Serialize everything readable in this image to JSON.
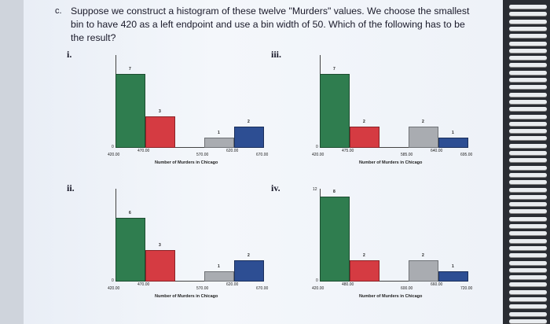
{
  "question": {
    "letter": "c.",
    "text": "Suppose we construct a histogram of these twelve \"Murders\" values. We choose the smallest bin to have 420 as a left endpoint and use a bin width of 50. Which of the following has to be the result?"
  },
  "colors": {
    "green": "#2f7d4f",
    "red": "#d53b42",
    "grey": "#a9acb1",
    "blue": "#2d4e93"
  },
  "panels": [
    {
      "label": "i.",
      "xtitle": "Number of Murders in Chicago",
      "counts": [
        7,
        3,
        1,
        2
      ],
      "ticks": [
        "420.00",
        "470.00",
        "570.00",
        "620.00",
        "670.00"
      ],
      "ymax_label": ""
    },
    {
      "label": "ii.",
      "xtitle": "Number of Murders in Chicago",
      "counts": [
        6,
        3,
        1,
        2
      ],
      "ticks": [
        "420.00",
        "470.00",
        "570.00",
        "620.00",
        "670.00"
      ],
      "ymax_label": ""
    },
    {
      "label": "iii.",
      "xtitle": "Number of Murders in Chicago",
      "counts": [
        7,
        2,
        2,
        1
      ],
      "ticks": [
        "420.00",
        "475.00",
        "585.00",
        "640.00",
        "695.00"
      ],
      "ymax_label": ""
    },
    {
      "label": "iv.",
      "xtitle": "Number of Murders in Chicago",
      "counts": [
        8,
        2,
        2,
        1
      ],
      "ticks": [
        "420.00",
        "480.00",
        "600.00",
        "660.00",
        "720.00"
      ],
      "ymax_label": "12"
    }
  ],
  "zero_label": "0"
}
